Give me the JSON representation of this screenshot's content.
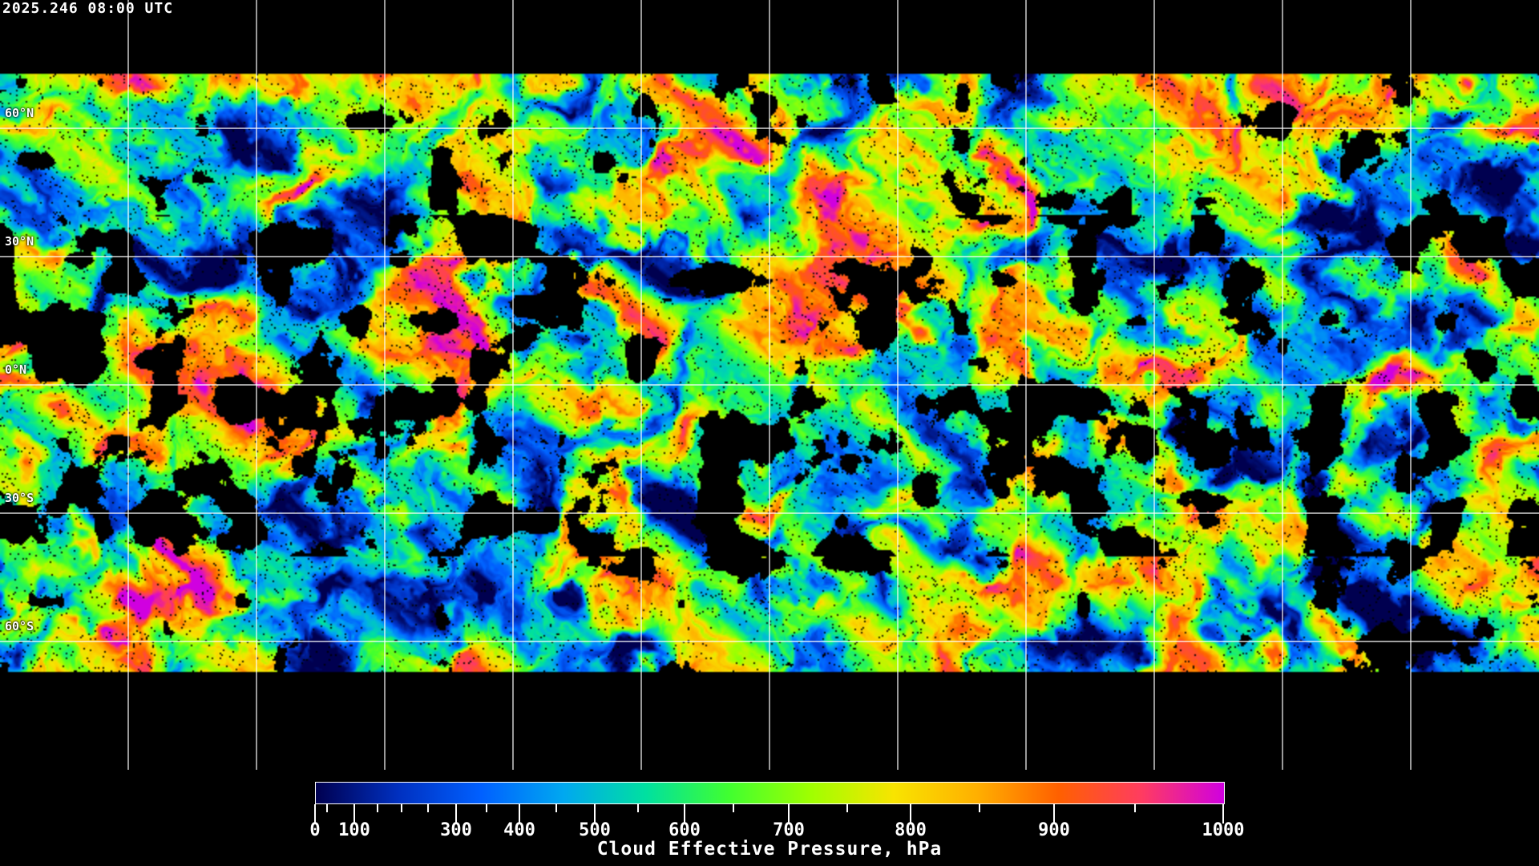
{
  "timestamp": "2025.246 08:00 UTC",
  "map": {
    "projection": "equirectangular",
    "grid_spacing_deg": 30,
    "latitude_labels": [
      "60°N",
      "30°N",
      "0°N",
      "30°S",
      "60°S"
    ],
    "no_data_color": "#000000",
    "grid_color": "#ffffff",
    "coastline_color": "#ffffff"
  },
  "colorbar": {
    "title": "Cloud Effective Pressure, hPa",
    "range": [
      0,
      1000
    ],
    "tick_labels": [
      "0",
      "100",
      "300",
      "400",
      "500",
      "600",
      "700",
      "800",
      "900",
      "1000"
    ],
    "minor_ticks": [
      50,
      150,
      200,
      250,
      350,
      450,
      550,
      650,
      750,
      850,
      950
    ],
    "colors": [
      "#000050",
      "#0030c0",
      "#0060ff",
      "#00a8f0",
      "#00e0a0",
      "#40ff30",
      "#a0ff00",
      "#f8e400",
      "#ffb000",
      "#ff6000",
      "#ff3c60",
      "#d000e0"
    ]
  }
}
